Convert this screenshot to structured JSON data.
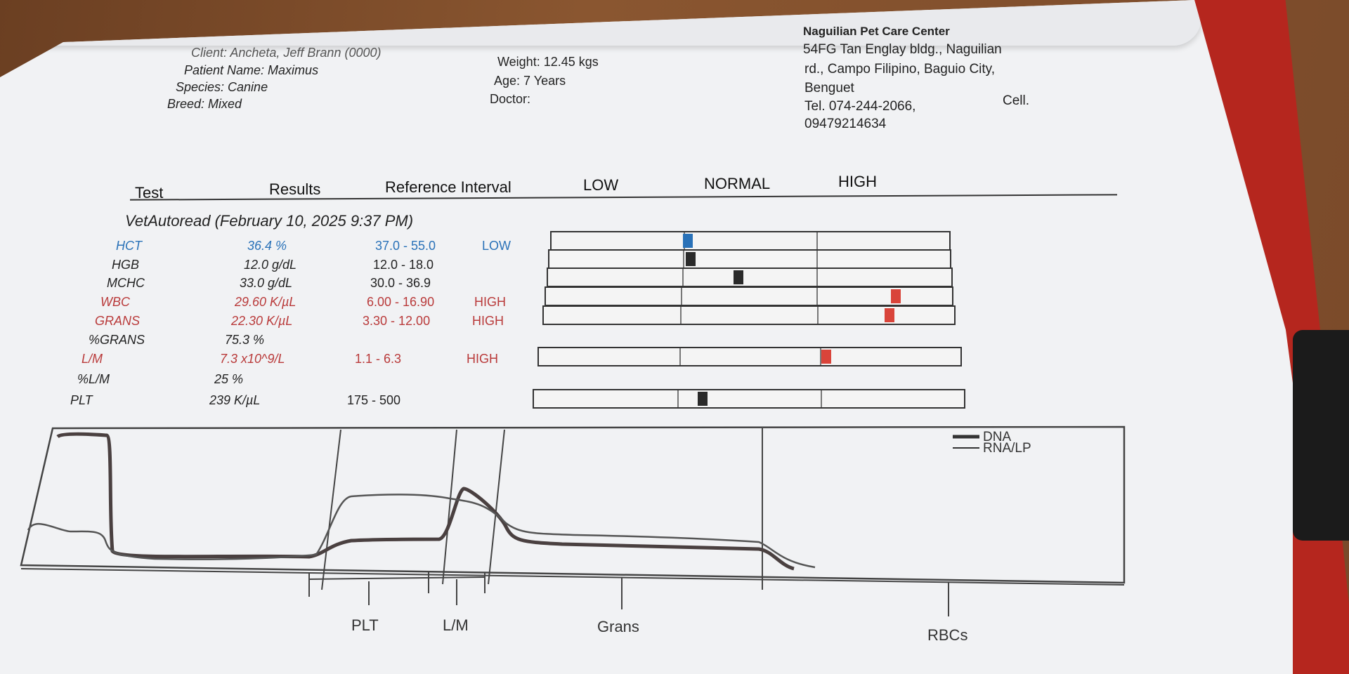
{
  "patient": {
    "client": "Client: Ancheta, Jeff Brann (0000)",
    "name": "Patient Name: Maximus",
    "species": "Species: Canine",
    "breed": "Breed: Mixed",
    "weight": "Weight: 12.45 kgs",
    "age": "Age: 7 Years",
    "doctor": "Doctor:"
  },
  "clinic": {
    "name": "Naguilian Pet Care Center",
    "address1": "54FG Tan Englay bldg., Naguilian",
    "address2": "rd., Campo Filipino, Baguio City,",
    "address3": "Benguet",
    "tel": "Tel. 074-244-2066,",
    "cell_label": "Cell.",
    "cell": "09479214634"
  },
  "headers": {
    "test": "Test",
    "results": "Results",
    "reference": "Reference Interval",
    "low": "LOW",
    "normal": "NORMAL",
    "high": "HIGH"
  },
  "session": "VetAutoread (February 10, 2025 9:37 PM)",
  "results": [
    {
      "test": "HCT",
      "result": "36.4 %",
      "ref": "37.0 - 55.0",
      "flag": "LOW",
      "level": "low",
      "marker": 0.33,
      "color": "#2a72b8"
    },
    {
      "test": "HGB",
      "result": "12.0 g/dL",
      "ref": "12.0 - 18.0",
      "flag": "",
      "level": "normal",
      "marker": 0.34,
      "color": "#2a2a2a"
    },
    {
      "test": "MCHC",
      "result": "33.0 g/dL",
      "ref": "30.0 - 36.9",
      "flag": "",
      "level": "normal",
      "marker": 0.46,
      "color": "#2a2a2a"
    },
    {
      "test": "WBC",
      "result": "29.60 K/µL",
      "ref": "6.00 - 16.90",
      "flag": "HIGH",
      "level": "high",
      "marker": 0.85,
      "color": "#d9443a"
    },
    {
      "test": "GRANS",
      "result": "22.30 K/µL",
      "ref": "3.30 - 12.00",
      "flag": "HIGH",
      "level": "high",
      "marker": 0.83,
      "color": "#d9443a"
    },
    {
      "test": "%GRANS",
      "result": "75.3 %",
      "ref": "",
      "flag": "",
      "level": "normal"
    },
    {
      "test": "L/M",
      "result": "7.3 x10^9/L",
      "ref": "1.1 - 6.3",
      "flag": "HIGH",
      "level": "high",
      "marker": 0.67,
      "color": "#d9443a"
    },
    {
      "test": "%L/M",
      "result": "25 %",
      "ref": "",
      "flag": "",
      "level": "normal"
    },
    {
      "test": "PLT",
      "result": "239 K/µL",
      "ref": "175 - 500",
      "flag": "",
      "level": "normal",
      "marker": 0.38,
      "color": "#2a2a2a"
    }
  ],
  "histogram": {
    "legend": [
      "DNA",
      "RNA/LP"
    ],
    "zones": [
      "PLT",
      "L/M",
      "Grans",
      "RBCs"
    ]
  }
}
